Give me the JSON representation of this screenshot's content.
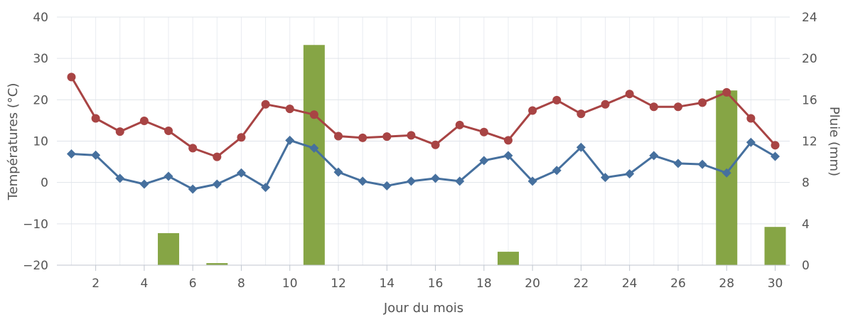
{
  "chart_data": {
    "type": "combo",
    "title": "",
    "xlabel": "Jour du mois",
    "ylabel_left": "Températures (°C)",
    "ylabel_right": "Pluie (mm)",
    "x": [
      1,
      2,
      3,
      4,
      5,
      6,
      7,
      8,
      9,
      10,
      11,
      12,
      13,
      14,
      15,
      16,
      17,
      18,
      19,
      20,
      21,
      22,
      23,
      24,
      25,
      26,
      27,
      28,
      29,
      30
    ],
    "x_ticks": [
      "2",
      "4",
      "6",
      "8",
      "10",
      "12",
      "14",
      "16",
      "18",
      "20",
      "22",
      "24",
      "26",
      "28",
      "30"
    ],
    "y_left_ticks": [
      "40",
      "30",
      "20",
      "10",
      "0",
      "−10",
      "−20"
    ],
    "y_right_ticks": [
      "24",
      "20",
      "16",
      "12",
      "8",
      "4",
      "0"
    ],
    "ylim_left": [
      -20,
      40
    ],
    "ylim_right": [
      0,
      24
    ],
    "xlim": [
      0.4,
      30.6
    ],
    "grid": true,
    "legend": "none",
    "series": [
      {
        "type": "bar",
        "axis": "right",
        "color": "#86a545",
        "values": [
          0,
          0,
          0,
          0,
          3.1,
          0,
          0.2,
          0,
          0,
          0,
          21.3,
          0,
          0,
          0,
          0,
          0,
          0,
          0,
          1.3,
          0,
          0,
          0,
          0,
          0,
          0,
          0,
          0,
          16.9,
          0,
          3.7
        ]
      },
      {
        "type": "line",
        "axis": "left",
        "marker": "circle",
        "color": "#a84444",
        "values": [
          25.5,
          15.5,
          12.3,
          14.9,
          12.5,
          8.3,
          6.2,
          10.9,
          18.9,
          17.8,
          16.4,
          11.2,
          10.8,
          11.1,
          11.4,
          9.1,
          13.9,
          12.2,
          10.2,
          17.4,
          19.9,
          16.6,
          18.9,
          21.4,
          18.3,
          18.3,
          19.3,
          21.8,
          15.5,
          9.0
        ]
      },
      {
        "type": "line",
        "axis": "left",
        "marker": "diamond",
        "color": "#46709e",
        "values": [
          6.9,
          6.6,
          1.0,
          -0.4,
          1.5,
          -1.6,
          -0.4,
          2.3,
          -1.2,
          10.2,
          8.3,
          2.5,
          0.3,
          -0.8,
          0.3,
          1.0,
          0.3,
          5.3,
          6.5,
          0.3,
          2.9,
          8.5,
          1.2,
          2.1,
          6.5,
          4.6,
          4.4,
          2.3,
          9.7,
          6.3
        ]
      }
    ]
  }
}
